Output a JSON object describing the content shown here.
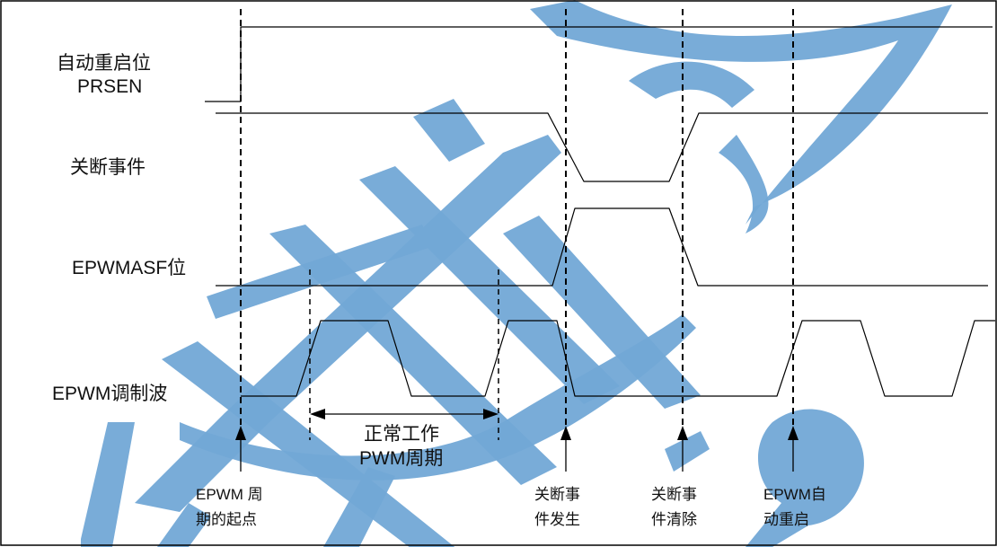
{
  "signals": {
    "prsen_line1": "自动重启位",
    "prsen_line2": "PRSEN",
    "shutdown_event": "关断事件",
    "epwmasf": "EPWMASF位",
    "epwm_wave": "EPWM调制波"
  },
  "annotations": {
    "normal_period_line1": "正常工作",
    "normal_period_line2": "PWM周期"
  },
  "markers": [
    {
      "line1": "EPWM 周",
      "line2": "期的起点"
    },
    {
      "line1": "关断事",
      "line2": "件发生"
    },
    {
      "line1": "关断事",
      "line2": "件清除"
    },
    {
      "line1": "EPWM自",
      "line2": "动重启"
    }
  ],
  "colors": {
    "watermark": "#72a8d6"
  }
}
